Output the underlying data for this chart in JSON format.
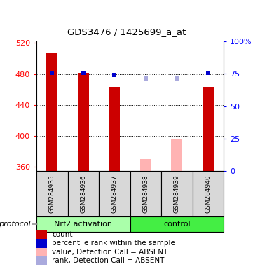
{
  "title": "GDS3476 / 1425699_a_at",
  "samples": [
    "GSM284935",
    "GSM284936",
    "GSM284937",
    "GSM284938",
    "GSM284939",
    "GSM284940"
  ],
  "bar_values": [
    507,
    481,
    463,
    370,
    396,
    463
  ],
  "bar_colors": [
    "#cc0000",
    "#cc0000",
    "#cc0000",
    "#ffb3b3",
    "#ffb3b3",
    "#cc0000"
  ],
  "percentile_vals": [
    481,
    481,
    479,
    474,
    474,
    481
  ],
  "percentile_colors": [
    "#0000cc",
    "#0000cc",
    "#0000cc",
    "#aaaadd",
    "#aaaadd",
    "#0000cc"
  ],
  "y_min": 355,
  "y_max": 522,
  "y_ticks": [
    360,
    400,
    440,
    480,
    520
  ],
  "y2_ticks": [
    0,
    25,
    50,
    75,
    100
  ],
  "y2_labels": [
    "0",
    "25",
    "50",
    "75",
    "100%"
  ],
  "group1_label": "Nrf2 activation",
  "group2_label": "control",
  "protocol_label": "protocol",
  "group1_color": "#aaffaa",
  "group2_color": "#44ee44",
  "sample_box_color": "#d8d8d8",
  "bar_width": 0.35,
  "legend_items": [
    {
      "color": "#cc0000",
      "label": "count"
    },
    {
      "color": "#0000cc",
      "label": "percentile rank within the sample"
    },
    {
      "color": "#ffb3b3",
      "label": "value, Detection Call = ABSENT"
    },
    {
      "color": "#aaaadd",
      "label": "rank, Detection Call = ABSENT"
    }
  ]
}
